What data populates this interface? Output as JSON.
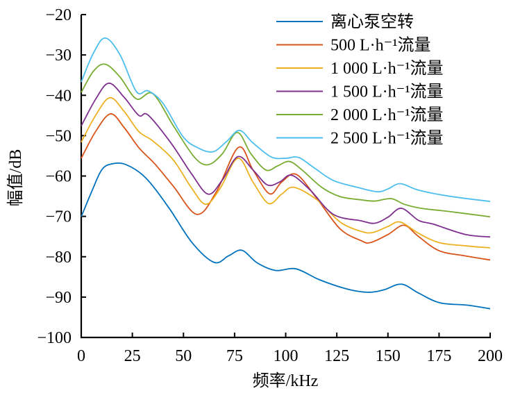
{
  "chart_data": {
    "type": "line",
    "title": "",
    "xlabel": "频率/kHz",
    "ylabel": "幅值/dB",
    "xlim": [
      0,
      200
    ],
    "ylim": [
      -100,
      -20
    ],
    "xticks": [
      0,
      25,
      50,
      75,
      100,
      125,
      150,
      175,
      200
    ],
    "xtick_labels": [
      "0",
      "25",
      "50",
      "75",
      "100",
      "125",
      "150",
      "175",
      "200"
    ],
    "yticks": [
      -100,
      -90,
      -80,
      -70,
      -60,
      -50,
      -40,
      -30,
      -20
    ],
    "ytick_labels": [
      "−100",
      "−90",
      "−80",
      "−70",
      "−60",
      "−50",
      "−40",
      "−30",
      "−20"
    ],
    "grid": false,
    "legend_position": "top-right",
    "series": [
      {
        "name": "离心泵空转",
        "color": "#0072BD",
        "x": [
          0,
          5,
          10,
          15,
          22,
          31.6,
          42.9,
          54.2,
          65,
          72,
          78.6,
          86,
          95,
          105,
          116.5,
          130,
          140.2,
          148,
          156.6,
          165,
          175.3,
          188.9,
          200
        ],
        "y": [
          -70.1,
          -64,
          -58.5,
          -57,
          -57.2,
          -60.5,
          -67.9,
          -76.5,
          -81.4,
          -79.8,
          -78.4,
          -81.5,
          -83.4,
          -83.0,
          -85.7,
          -88.0,
          -88.8,
          -88.2,
          -86.8,
          -89.0,
          -91.4,
          -92.0,
          -92.9
        ]
      },
      {
        "name": "500 L·h⁻¹流量",
        "color": "#D95319",
        "x": [
          0,
          7,
          14.3,
          21,
          28.2,
          36,
          45,
          56.6,
          66,
          76.9,
          84,
          92.1,
          98,
          105.2,
          115.3,
          126.6,
          136.8,
          141.4,
          150,
          157.8,
          165,
          175,
          188,
          200
        ],
        "y": [
          -55.6,
          -49,
          -44.6,
          -48,
          -53,
          -57,
          -62.5,
          -69.5,
          -64,
          -52.9,
          -58.5,
          -64.4,
          -61.5,
          -59.6,
          -65.6,
          -73.1,
          -76,
          -76.5,
          -74.5,
          -72.2,
          -75,
          -78.5,
          -79.8,
          -80.8
        ]
      },
      {
        "name": "1 000 L·h⁻¹流量",
        "color": "#EDB120",
        "x": [
          0,
          7,
          14,
          21,
          28.2,
          35,
          45,
          54,
          61,
          68,
          76.6,
          84,
          91.6,
          98,
          104,
          115.3,
          126.6,
          136.8,
          142.5,
          150,
          156,
          165,
          175,
          188,
          200
        ],
        "y": [
          -51.6,
          -45,
          -40.6,
          -44,
          -49,
          -51.3,
          -56,
          -63,
          -67,
          -63,
          -55.6,
          -61.5,
          -66.8,
          -64.5,
          -62.8,
          -65.9,
          -71.4,
          -73.7,
          -74,
          -72.5,
          -71.4,
          -74.2,
          -76.5,
          -77.3,
          -77.8
        ]
      },
      {
        "name": "1 500 L·h⁻¹流量",
        "color": "#7E2F8E",
        "x": [
          0,
          7,
          13.5,
          21,
          28.2,
          32.7,
          44,
          54,
          62.1,
          69,
          76.6,
          84,
          91,
          97,
          102.9,
          112,
          123.3,
          136.8,
          143.6,
          150,
          156.6,
          165,
          172,
          188,
          200
        ],
        "y": [
          -47.6,
          -41,
          -37,
          -40.5,
          -45,
          -44.9,
          -51.9,
          -59.5,
          -64.5,
          -61,
          -55.2,
          -58.5,
          -62.2,
          -61.5,
          -59.8,
          -63.5,
          -69.5,
          -71.1,
          -71.7,
          -70.2,
          -68,
          -71,
          -71.9,
          -74.5,
          -75.1
        ]
      },
      {
        "name": "2 000 L·h⁻¹流量",
        "color": "#77AC30",
        "x": [
          0,
          6,
          11.8,
          19,
          27,
          35,
          45,
          55.3,
          62,
          69,
          76.3,
          83,
          90.3,
          96,
          101.8,
          108,
          117.6,
          126.6,
          136.8,
          143.6,
          151.6,
          158,
          166.3,
          180,
          200
        ],
        "y": [
          -39.3,
          -34,
          -32.3,
          -35.5,
          -40.9,
          -39.6,
          -47.5,
          -55.3,
          -57.2,
          -54.5,
          -49.2,
          -54.5,
          -58.5,
          -57.5,
          -56.4,
          -58.5,
          -62.8,
          -65.1,
          -65.9,
          -66.2,
          -65.6,
          -67,
          -68,
          -68.8,
          -70.1
        ]
      },
      {
        "name": "2 500 L·h⁻¹流量",
        "color": "#4DBEEE",
        "x": [
          0,
          6,
          11.8,
          19,
          27,
          32.7,
          40,
          49.7,
          57,
          64.4,
          71,
          77.4,
          84,
          93,
          100,
          106.3,
          114,
          123.3,
          135,
          144.8,
          150,
          156.1,
          165,
          180,
          200
        ],
        "y": [
          -36.7,
          -29.5,
          -25.8,
          -30,
          -39.1,
          -38.9,
          -42,
          -50.2,
          -53,
          -54,
          -51.5,
          -48.7,
          -51.8,
          -55.3,
          -55.6,
          -55.4,
          -58,
          -61.1,
          -62.8,
          -63.9,
          -63.2,
          -61.9,
          -63.5,
          -65,
          -66.3
        ]
      }
    ]
  }
}
